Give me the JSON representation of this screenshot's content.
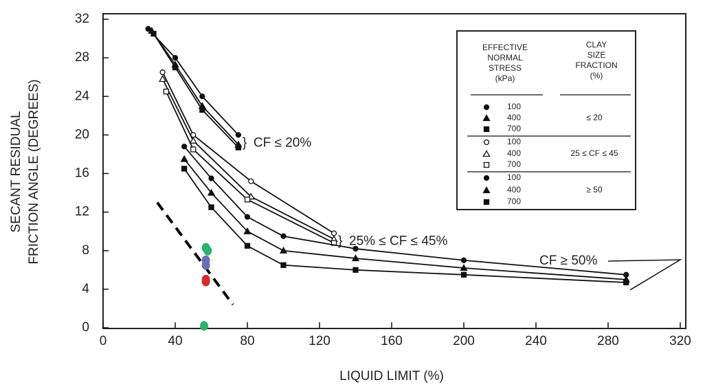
{
  "chart_data": {
    "type": "line",
    "x_label": "LIQUID LIMIT (%)",
    "y_label": [
      "SECANT RESIDUAL",
      "FRICTION ANGLE (DEGREES)"
    ],
    "xlim": [
      0,
      320
    ],
    "xticks": [
      0,
      40,
      80,
      120,
      160,
      200,
      240,
      280,
      320
    ],
    "ylim": [
      0,
      32
    ],
    "yticks": [
      0,
      4,
      8,
      12,
      16,
      20,
      24,
      28,
      32
    ],
    "color": "#111111",
    "legend": {
      "stress_header": [
        "EFFECTIVE",
        "NORMAL",
        "STRESS",
        "(kPa)"
      ],
      "clay_header": [
        "CLAY",
        "SIZE",
        "FRACTION",
        "(%)"
      ]
    },
    "series_groups": [
      {
        "label": "≤ 20",
        "annotation": "CF ≤ 20%",
        "filled": true,
        "series": [
          {
            "name": "100",
            "marker": "circle",
            "x": [
              25,
              40,
              55,
              75
            ],
            "values": [
              31,
              28,
              24,
              20
            ]
          },
          {
            "name": "400",
            "marker": "triangle",
            "x": [
              27,
              40,
              55,
              75
            ],
            "values": [
              30.8,
              27.3,
              23,
              19
            ]
          },
          {
            "name": "700",
            "marker": "square",
            "x": [
              28,
              40,
              55,
              75
            ],
            "values": [
              30.5,
              27,
              22.6,
              18.7
            ]
          }
        ]
      },
      {
        "label": "25 ≤ CF ≤ 45",
        "annotation": "25% ≤ CF ≤ 45%",
        "filled": false,
        "series": [
          {
            "name": "100",
            "marker": "circle",
            "x": [
              33,
              50,
              82,
              128
            ],
            "values": [
              26.5,
              20,
              15.2,
              9.8
            ]
          },
          {
            "name": "400",
            "marker": "triangle",
            "x": [
              33,
              50,
              82,
              128
            ],
            "values": [
              25.8,
              19.4,
              13.6,
              9.2
            ]
          },
          {
            "name": "700",
            "marker": "square",
            "x": [
              35,
              50,
              80,
              128
            ],
            "values": [
              24.5,
              18.5,
              13.3,
              8.8
            ]
          }
        ]
      },
      {
        "label": "≥ 50",
        "annotation": "CF ≥ 50%",
        "filled": true,
        "series": [
          {
            "name": "100",
            "marker": "circle",
            "x": [
              45,
              60,
              80,
              100,
              140,
              200,
              290
            ],
            "values": [
              18.8,
              15.5,
              11.5,
              9.5,
              8.2,
              7,
              5.5
            ]
          },
          {
            "name": "400",
            "marker": "triangle",
            "x": [
              45,
              60,
              80,
              100,
              140,
              200,
              290
            ],
            "values": [
              17.5,
              14,
              10,
              8,
              7.2,
              6.2,
              5
            ]
          },
          {
            "name": "700",
            "marker": "square",
            "x": [
              45,
              60,
              80,
              100,
              140,
              200,
              290
            ],
            "values": [
              16.5,
              12.5,
              8.5,
              6.5,
              6,
              5.5,
              4.7
            ]
          }
        ]
      }
    ],
    "overlay_points": {
      "x": [
        57,
        58,
        57,
        57,
        57,
        57,
        56
      ],
      "values": [
        8.3,
        8,
        7,
        6.5,
        5,
        4.8,
        0.2
      ],
      "colors": [
        "#2db36b",
        "#2db36b",
        "#6a6fb5",
        "#6a6fb5",
        "#d22c2c",
        "#d22c2c",
        "#2db36b"
      ]
    },
    "dashed_line": {
      "x": [
        30,
        72
      ],
      "values": [
        13,
        2.4
      ]
    }
  }
}
